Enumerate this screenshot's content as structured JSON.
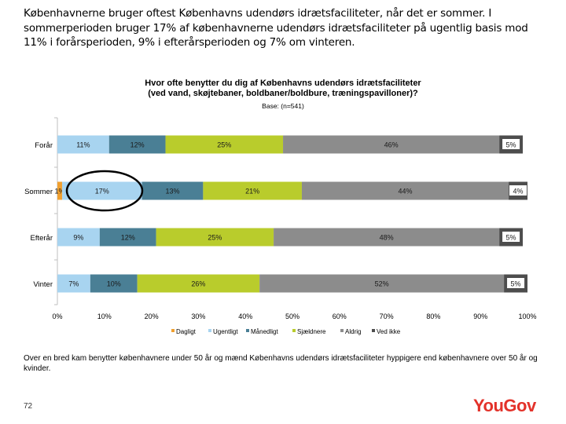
{
  "intro_text": "Københavnerne bruger oftest Københavns udendørs idrætsfaciliteter, når det er sommer. I sommerperioden bruger 17% af københavnerne udendørs idrætsfaciliteter på ugentlig basis mod 11% i forårsperioden, 9% i efterårsperioden og 7% om vinteren.",
  "bottom_note": "Over en bred kam benytter københavnere under 50 år og mænd Københavns udendørs idrætsfaciliteter hyppigere end københavnere over 50 år og kvinder.",
  "page_number": "72",
  "logo_text": "YouGov",
  "chart_data": {
    "type": "bar",
    "orientation": "horizontal",
    "stacked": true,
    "title_line1": "Hvor ofte benytter du dig af Københavns udendørs idrætsfaciliteter",
    "title_line2": "(ved vand, skøjtebaner, boldbaner/boldbure, træningspavilloner)?",
    "subtitle": "Base: (n=541)",
    "categories": [
      "Forår",
      "Sommer",
      "Efterår",
      "Vinter"
    ],
    "series": [
      {
        "name": "Dagligt",
        "color": "#f0a030",
        "values": [
          0,
          1,
          0,
          0
        ],
        "labels": [
          "",
          "1%",
          "",
          ""
        ]
      },
      {
        "name": "Ugentligt",
        "color": "#a8d4f0",
        "values": [
          11,
          17,
          9,
          7
        ],
        "labels": [
          "11%",
          "17%",
          "9%",
          "7%"
        ]
      },
      {
        "name": "Månedligt",
        "color": "#4a7f95",
        "values": [
          12,
          13,
          12,
          10
        ],
        "labels": [
          "12%",
          "13%",
          "12%",
          "10%"
        ]
      },
      {
        "name": "Sjældnere",
        "color": "#b9cc2c",
        "values": [
          25,
          21,
          25,
          26
        ],
        "labels": [
          "25%",
          "21%",
          "25%",
          "26%"
        ]
      },
      {
        "name": "Aldrig",
        "color": "#8c8c8c",
        "values": [
          46,
          44,
          48,
          52
        ],
        "labels": [
          "46%",
          "44%",
          "48%",
          "52%"
        ]
      },
      {
        "name": "Ved ikke",
        "color": "#4d4d4d",
        "values": [
          5,
          4,
          5,
          5
        ],
        "labels": [
          "5%",
          "4%",
          "5%",
          "5%"
        ]
      }
    ],
    "xticks": [
      "0%",
      "10%",
      "20%",
      "30%",
      "40%",
      "50%",
      "60%",
      "70%",
      "80%",
      "90%",
      "100%"
    ],
    "xlim": [
      0,
      100
    ],
    "legend_position": "bottom",
    "annotation": "ellipse around Sommer Ugentligt 17%"
  }
}
